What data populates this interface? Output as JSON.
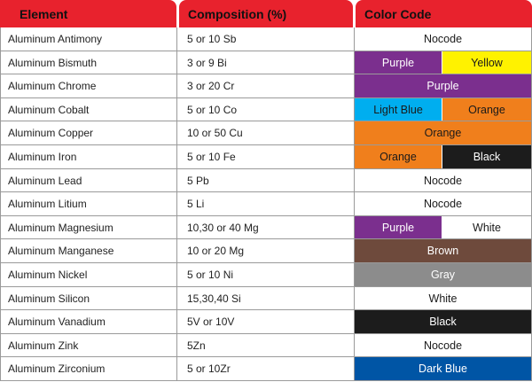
{
  "headers": {
    "element": "Element",
    "composition": "Composition (%)",
    "color_code": "Color Code"
  },
  "colors": {
    "header_red": "#e8222d",
    "Nocode": "#ffffff",
    "Purple": "#7b2f8e",
    "Yellow": "#fff200",
    "Light Blue": "#00aeef",
    "Orange": "#f07f1c",
    "Black": "#1c1c1c",
    "White": "#ffffff",
    "Brown": "#6e4a3c",
    "Gray": "#8c8c8c",
    "Dark Blue": "#0055a5"
  },
  "rows": [
    {
      "element": "Aluminum Antimony",
      "composition": "5 or 10 Sb",
      "codes": [
        "Nocode"
      ]
    },
    {
      "element": "Aluminum Bismuth",
      "composition": "3 or 9 Bi",
      "codes": [
        "Purple",
        "Yellow"
      ]
    },
    {
      "element": "Aluminum Chrome",
      "composition": "3 or 20 Cr",
      "codes": [
        "Purple"
      ]
    },
    {
      "element": "Aluminum Cobalt",
      "composition": "5 or 10 Co",
      "codes": [
        "Light Blue",
        "Orange"
      ]
    },
    {
      "element": "Aluminum Copper",
      "composition": "10 or 50 Cu",
      "codes": [
        "Orange"
      ]
    },
    {
      "element": "Aluminum Iron",
      "composition": "5 or 10 Fe",
      "codes": [
        "Orange",
        "Black"
      ]
    },
    {
      "element": "Aluminum Lead",
      "composition": "5 Pb",
      "codes": [
        "Nocode"
      ]
    },
    {
      "element": "Aluminum Litium",
      "composition": "5 Li",
      "codes": [
        "Nocode"
      ]
    },
    {
      "element": "Aluminum Magnesium",
      "composition": "10,30 or 40 Mg",
      "codes": [
        "Purple",
        "White"
      ]
    },
    {
      "element": "Aluminum Manganese",
      "composition": "10 or 20 Mg",
      "codes": [
        "Brown"
      ]
    },
    {
      "element": "Aluminum Nickel",
      "composition": "5 or 10 Ni",
      "codes": [
        "Gray"
      ]
    },
    {
      "element": "Aluminum Silicon",
      "composition": "15,30,40 Si",
      "codes": [
        "White"
      ]
    },
    {
      "element": "Aluminum Vanadium",
      "composition": "5V or 10V",
      "codes": [
        "Black"
      ]
    },
    {
      "element": "Aluminum Zink",
      "composition": "5Zn",
      "codes": [
        "Nocode"
      ]
    },
    {
      "element": "Aluminum Zirconium",
      "composition": "5 or 10Zr",
      "codes": [
        "Dark Blue"
      ]
    }
  ]
}
